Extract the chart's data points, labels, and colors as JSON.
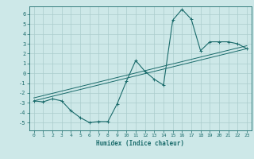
{
  "xlabel": "Humidex (Indice chaleur)",
  "background_color": "#cde8e8",
  "grid_color": "#aacccc",
  "line_color": "#1a6b6b",
  "xlim": [
    -0.5,
    23.5
  ],
  "ylim": [
    -5.8,
    6.8
  ],
  "xticks": [
    0,
    1,
    2,
    3,
    4,
    5,
    6,
    7,
    8,
    9,
    10,
    11,
    12,
    13,
    14,
    15,
    16,
    17,
    18,
    19,
    20,
    21,
    22,
    23
  ],
  "yticks": [
    -5,
    -4,
    -3,
    -2,
    -1,
    0,
    1,
    2,
    3,
    4,
    5,
    6
  ],
  "curve1_x": [
    0,
    1,
    2,
    3,
    4,
    5,
    6,
    7,
    8,
    9,
    10,
    11,
    12,
    13,
    14,
    15,
    16,
    17,
    18,
    19,
    20,
    21,
    22,
    23
  ],
  "curve1_y": [
    -2.8,
    -2.9,
    -2.6,
    -2.8,
    -3.8,
    -4.5,
    -5.0,
    -4.9,
    -4.9,
    -3.1,
    -0.8,
    1.3,
    0.2,
    -0.6,
    -1.2,
    5.4,
    6.5,
    5.5,
    2.3,
    3.2,
    3.2,
    3.2,
    3.0,
    2.5
  ],
  "line1_x": [
    0,
    23
  ],
  "line1_y": [
    -2.8,
    2.5
  ],
  "line2_x": [
    0,
    23
  ],
  "line2_y": [
    -2.5,
    2.8
  ],
  "figwidth": 3.2,
  "figheight": 2.0,
  "dpi": 100
}
